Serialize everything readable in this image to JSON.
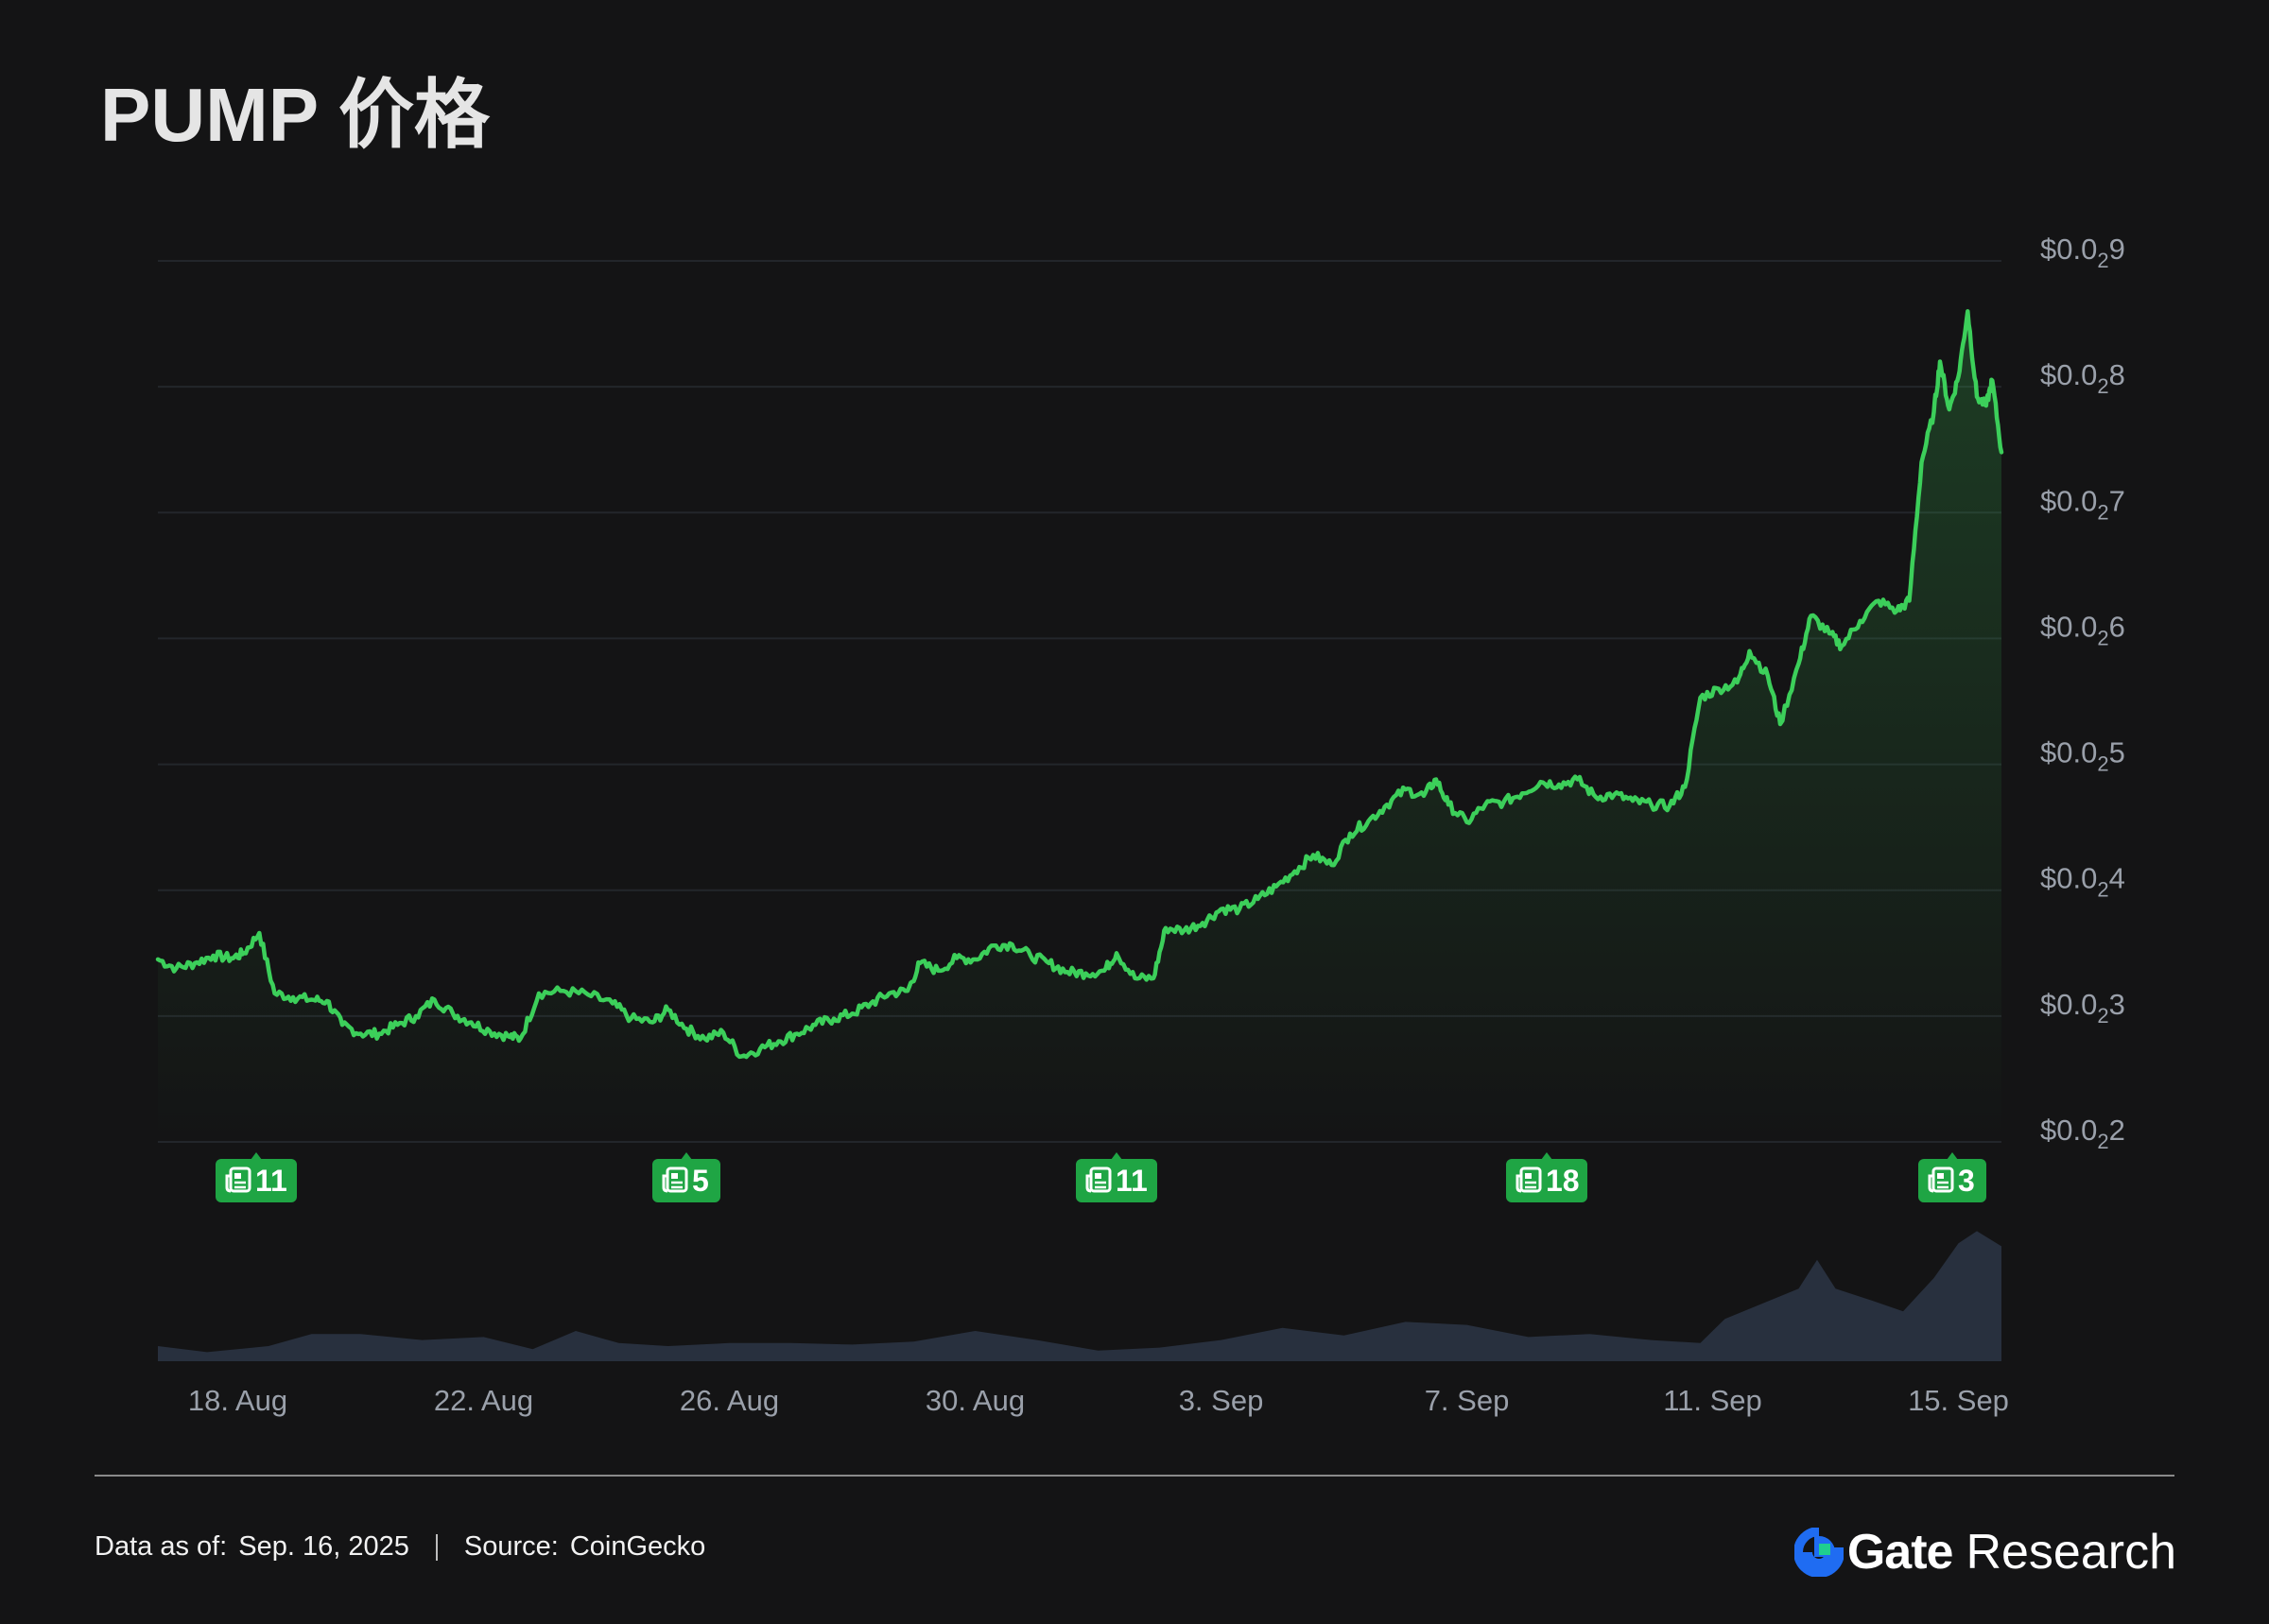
{
  "page": {
    "title": "PUMP 价格"
  },
  "chart_data": {
    "type": "line",
    "title": "PUMP 价格",
    "currency_prefix": "$0.0",
    "subscript_zeros": "2",
    "y_ticks": [
      {
        "main": "$0.0",
        "sub": "2",
        "tail": "9",
        "value": 0.0009
      },
      {
        "main": "$0.0",
        "sub": "2",
        "tail": "8",
        "value": 0.0008
      },
      {
        "main": "$0.0",
        "sub": "2",
        "tail": "7",
        "value": 0.0007
      },
      {
        "main": "$0.0",
        "sub": "2",
        "tail": "6",
        "value": 0.0006
      },
      {
        "main": "$0.0",
        "sub": "2",
        "tail": "5",
        "value": 0.0005
      },
      {
        "main": "$0.0",
        "sub": "2",
        "tail": "4",
        "value": 0.0004
      },
      {
        "main": "$0.0",
        "sub": "2",
        "tail": "3",
        "value": 0.0003
      },
      {
        "main": "$0.0",
        "sub": "2",
        "tail": "2",
        "value": 0.0002
      }
    ],
    "ylim": [
      0.0002,
      0.0009
    ],
    "x_ticks": [
      "18. Aug",
      "22. Aug",
      "26. Aug",
      "30. Aug",
      "3. Sep",
      "7. Sep",
      "11. Sep",
      "15. Sep"
    ],
    "x_tick_days": [
      2,
      6,
      10,
      14,
      18,
      22,
      26,
      30
    ],
    "x_range_days": [
      0.7,
      30.7
    ],
    "series": [
      {
        "color": "#3ccf5a",
        "points": [
          [
            0.7,
            0.000345
          ],
          [
            1.0,
            0.000338
          ],
          [
            1.3,
            0.000342
          ],
          [
            1.6,
            0.000348
          ],
          [
            1.9,
            0.000346
          ],
          [
            2.1,
            0.00035
          ],
          [
            2.35,
            0.000366
          ],
          [
            2.6,
            0.000318
          ],
          [
            2.9,
            0.000315
          ],
          [
            3.2,
            0.000313
          ],
          [
            3.45,
            0.000312
          ],
          [
            3.7,
            0.000293
          ],
          [
            4.0,
            0.000286
          ],
          [
            4.3,
            0.000286
          ],
          [
            4.6,
            0.000293
          ],
          [
            4.9,
            0.0003
          ],
          [
            5.2,
            0.000313
          ],
          [
            5.5,
            0.000302
          ],
          [
            5.8,
            0.000295
          ],
          [
            6.1,
            0.000288
          ],
          [
            6.4,
            0.000284
          ],
          [
            6.6,
            0.000282
          ],
          [
            6.9,
            0.000318
          ],
          [
            7.3,
            0.00032
          ],
          [
            7.7,
            0.000317
          ],
          [
            8.1,
            0.00031
          ],
          [
            8.4,
            0.000298
          ],
          [
            8.75,
            0.000295
          ],
          [
            9.0,
            0.000305
          ],
          [
            9.3,
            0.00029
          ],
          [
            9.6,
            0.000282
          ],
          [
            9.9,
            0.000287
          ],
          [
            10.2,
            0.000268
          ],
          [
            10.5,
            0.000274
          ],
          [
            10.8,
            0.00028
          ],
          [
            11.1,
            0.000286
          ],
          [
            11.4,
            0.000293
          ],
          [
            11.7,
            0.000298
          ],
          [
            12.0,
            0.000302
          ],
          [
            12.3,
            0.00031
          ],
          [
            12.6,
            0.000318
          ],
          [
            12.9,
            0.00032
          ],
          [
            13.1,
            0.000342
          ],
          [
            13.4,
            0.000336
          ],
          [
            13.7,
            0.000346
          ],
          [
            14.0,
            0.000345
          ],
          [
            14.3,
            0.000356
          ],
          [
            14.6,
            0.000357
          ],
          [
            14.9,
            0.000348
          ],
          [
            15.2,
            0.000342
          ],
          [
            15.5,
            0.000335
          ],
          [
            15.8,
            0.000334
          ],
          [
            16.1,
            0.000336
          ],
          [
            16.3,
            0.00035
          ],
          [
            16.6,
            0.00033
          ],
          [
            16.9,
            0.00033
          ],
          [
            17.1,
            0.00037
          ],
          [
            17.4,
            0.000368
          ],
          [
            17.7,
            0.000374
          ],
          [
            18.0,
            0.000385
          ],
          [
            18.3,
            0.000385
          ],
          [
            18.6,
            0.000393
          ],
          [
            18.9,
            0.000403
          ],
          [
            19.2,
            0.000415
          ],
          [
            19.5,
            0.000428
          ],
          [
            19.8,
            0.00042
          ],
          [
            20.1,
            0.000445
          ],
          [
            20.4,
            0.000455
          ],
          [
            20.7,
            0.000468
          ],
          [
            21.0,
            0.00048
          ],
          [
            21.3,
            0.000475
          ],
          [
            21.5,
            0.000488
          ],
          [
            21.7,
            0.000468
          ],
          [
            22.0,
            0.000454
          ],
          [
            22.3,
            0.000468
          ],
          [
            22.6,
            0.00047
          ],
          [
            22.9,
            0.000477
          ],
          [
            23.2,
            0.000486
          ],
          [
            23.5,
            0.000484
          ],
          [
            23.8,
            0.000488
          ],
          [
            24.1,
            0.000474
          ],
          [
            24.4,
            0.000476
          ],
          [
            24.7,
            0.000471
          ],
          [
            25.0,
            0.000468
          ],
          [
            25.3,
            0.000467
          ],
          [
            25.55,
            0.000482
          ],
          [
            25.8,
            0.000553
          ],
          [
            26.1,
            0.00056
          ],
          [
            26.4,
            0.000565
          ],
          [
            26.6,
            0.00059
          ],
          [
            26.9,
            0.00057
          ],
          [
            27.1,
            0.000532
          ],
          [
            27.4,
            0.00058
          ],
          [
            27.6,
            0.000618
          ],
          [
            27.9,
            0.000604
          ],
          [
            28.1,
            0.000594
          ],
          [
            28.4,
            0.000614
          ],
          [
            28.7,
            0.00063
          ],
          [
            29.0,
            0.000622
          ],
          [
            29.2,
            0.00063
          ],
          [
            29.4,
            0.00074
          ],
          [
            29.6,
            0.00078
          ],
          [
            29.7,
            0.00082
          ],
          [
            29.85,
            0.000782
          ],
          [
            30.0,
            0.000808
          ],
          [
            30.15,
            0.00086
          ],
          [
            30.3,
            0.000792
          ],
          [
            30.45,
            0.000785
          ],
          [
            30.55,
            0.000805
          ],
          [
            30.7,
            0.000748
          ]
        ]
      }
    ],
    "volume": {
      "color": "#2a3342",
      "points": [
        [
          0.7,
          0.1
        ],
        [
          1.5,
          0.06
        ],
        [
          2.5,
          0.1
        ],
        [
          3.2,
          0.18
        ],
        [
          4.0,
          0.18
        ],
        [
          5.0,
          0.14
        ],
        [
          6.0,
          0.16
        ],
        [
          6.8,
          0.08
        ],
        [
          7.5,
          0.2
        ],
        [
          8.2,
          0.12
        ],
        [
          9.0,
          0.1
        ],
        [
          10.0,
          0.12
        ],
        [
          11.0,
          0.12
        ],
        [
          12.0,
          0.11
        ],
        [
          13.0,
          0.13
        ],
        [
          14.0,
          0.2
        ],
        [
          15.0,
          0.14
        ],
        [
          16.0,
          0.07
        ],
        [
          17.0,
          0.09
        ],
        [
          18.0,
          0.14
        ],
        [
          19.0,
          0.22
        ],
        [
          20.0,
          0.17
        ],
        [
          21.0,
          0.26
        ],
        [
          22.0,
          0.24
        ],
        [
          23.0,
          0.16
        ],
        [
          24.0,
          0.18
        ],
        [
          25.0,
          0.14
        ],
        [
          25.8,
          0.12
        ],
        [
          26.2,
          0.28
        ],
        [
          26.8,
          0.38
        ],
        [
          27.4,
          0.48
        ],
        [
          27.7,
          0.67
        ],
        [
          28.0,
          0.48
        ],
        [
          28.6,
          0.4
        ],
        [
          29.1,
          0.33
        ],
        [
          29.6,
          0.55
        ],
        [
          30.0,
          0.78
        ],
        [
          30.3,
          0.86
        ],
        [
          30.7,
          0.76
        ]
      ]
    },
    "news_badges": [
      {
        "day": 2.3,
        "count": "11"
      },
      {
        "day": 9.3,
        "count": "5"
      },
      {
        "day": 16.3,
        "count": "11"
      },
      {
        "day": 23.3,
        "count": "18"
      },
      {
        "day": 29.9,
        "count": "3"
      }
    ],
    "grid": true
  },
  "footer": {
    "data_label": "Data as of:",
    "data_value": "Sep. 16, 2025",
    "source_label": "Source:",
    "source_value": "CoinGecko"
  },
  "brand": {
    "gate": "Gate",
    "research": "Research",
    "accent": "#1f6cf2"
  }
}
